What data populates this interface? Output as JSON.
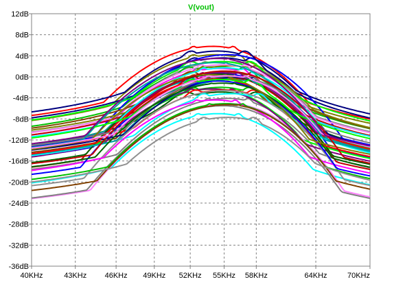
{
  "chart_data": {
    "type": "line",
    "title": "V(vout)",
    "title_color": "#00c000",
    "xlabel": "",
    "ylabel": "",
    "x_scale": "log",
    "xlim": [
      40000,
      70000
    ],
    "ylim": [
      -36,
      12
    ],
    "grid": true,
    "legend": "none",
    "x_ticks": [
      {
        "value": 40000,
        "label": "40KHz"
      },
      {
        "value": 43000,
        "label": "43KHz"
      },
      {
        "value": 46000,
        "label": "46KHz"
      },
      {
        "value": 49000,
        "label": "49KHz"
      },
      {
        "value": 52000,
        "label": "52KHz"
      },
      {
        "value": 55000,
        "label": "55KHz"
      },
      {
        "value": 58000,
        "label": "58KHz"
      },
      {
        "value": 64000,
        "label": "64KHz"
      },
      {
        "value": 70000,
        "label": "70KHz"
      }
    ],
    "y_ticks": [
      {
        "value": 12,
        "label": "12dB"
      },
      {
        "value": 8,
        "label": "8dB"
      },
      {
        "value": 4,
        "label": "4dB"
      },
      {
        "value": 0,
        "label": "0dB"
      },
      {
        "value": -4,
        "label": "-4dB"
      },
      {
        "value": -8,
        "label": "-8dB"
      },
      {
        "value": -12,
        "label": "-12dB"
      },
      {
        "value": -16,
        "label": "-16dB"
      },
      {
        "value": -20,
        "label": "-20dB"
      },
      {
        "value": -24,
        "label": "-24dB"
      },
      {
        "value": -28,
        "label": "-28dB"
      },
      {
        "value": -32,
        "label": "-32dB"
      },
      {
        "value": -36,
        "label": "-36dB"
      }
    ],
    "series_count": 48,
    "series_colors": [
      "#7f007f",
      "#ff00ff",
      "#00c000",
      "#ff0000",
      "#0000ff",
      "#00ffff",
      "#808080",
      "#006400",
      "#804000",
      "#7f7f00",
      "#00a0a0",
      "#c00000",
      "#00ff00",
      "#ff80ff",
      "#00007f",
      "#909090"
    ],
    "series": [
      {
        "f1": 52650,
        "f2": 56650,
        "peak": 1.6,
        "fall_low": 80,
        "fall_high": 111,
        "color": "#ff00ff"
      },
      {
        "f1": 52250,
        "f2": 57300,
        "peak": -2.0,
        "fall_low": 78,
        "fall_high": 111,
        "color": "#00c000"
      },
      {
        "f1": 52300,
        "f2": 55800,
        "peak": 5.8,
        "fall_low": 82,
        "fall_high": 109,
        "color": "#ff0000"
      },
      {
        "f1": 53650,
        "f2": 55900,
        "peak": 0.6,
        "fall_low": 79,
        "fall_high": 111,
        "color": "#0000ff"
      },
      {
        "f1": 52700,
        "f2": 56300,
        "peak": -7.0,
        "fall_low": 83,
        "fall_high": 109,
        "color": "#00ffff"
      },
      {
        "f1": 53600,
        "f2": 57200,
        "peak": -4.1,
        "fall_low": 80,
        "fall_high": 117,
        "color": "#808080"
      },
      {
        "f1": 51700,
        "f2": 58000,
        "peak": -2.9,
        "fall_low": 79,
        "fall_high": 115,
        "color": "#006400"
      },
      {
        "f1": 53900,
        "f2": 57100,
        "peak": -0.2,
        "fall_low": 83,
        "fall_high": 116,
        "color": "#804000"
      },
      {
        "f1": 52300,
        "f2": 56300,
        "peak": 4.2,
        "fall_low": 81,
        "fall_high": 112,
        "color": "#7f7f00"
      },
      {
        "f1": 52100,
        "f2": 55800,
        "peak": -0.2,
        "fall_low": 81,
        "fall_high": 109,
        "color": "#00a0a0"
      },
      {
        "f1": 53600,
        "f2": 55100,
        "peak": 0.5,
        "fall_low": 82,
        "fall_high": 108,
        "color": "#c00000"
      },
      {
        "f1": 52200,
        "f2": 56100,
        "peak": -2.3,
        "fall_low": 78,
        "fall_high": 115,
        "color": "#00ff00"
      },
      {
        "f1": 54700,
        "f2": 56200,
        "peak": -5.1,
        "fall_low": 79,
        "fall_high": 116,
        "color": "#ff80ff"
      },
      {
        "f1": 52400,
        "f2": 57500,
        "peak": 3.6,
        "fall_low": 83,
        "fall_high": 117,
        "color": "#00007f"
      },
      {
        "f1": 53300,
        "f2": 56900,
        "peak": 2.9,
        "fall_low": 82,
        "fall_high": 116,
        "color": "#909090"
      },
      {
        "f1": 52100,
        "f2": 55700,
        "peak": -2.3,
        "fall_low": 83,
        "fall_high": 110,
        "color": "#7f007f"
      },
      {
        "f1": 53200,
        "f2": 56800,
        "peak": 0.2,
        "fall_low": 80,
        "fall_high": 113,
        "color": "#ff00ff"
      },
      {
        "f1": 51900,
        "f2": 56900,
        "peak": 1.9,
        "fall_low": 79,
        "fall_high": 111,
        "color": "#00c000"
      },
      {
        "f1": 52500,
        "f2": 57700,
        "peak": -2.5,
        "fall_low": 81,
        "fall_high": 113,
        "color": "#ff0000"
      },
      {
        "f1": 54500,
        "f2": 56200,
        "peak": 4.2,
        "fall_low": 81,
        "fall_high": 112,
        "color": "#0000ff"
      },
      {
        "f1": 53200,
        "f2": 58200,
        "peak": -3.2,
        "fall_low": 78,
        "fall_high": 116,
        "color": "#00ffff"
      },
      {
        "f1": 54100,
        "f2": 55700,
        "peak": -5.5,
        "fall_low": 80,
        "fall_high": 108,
        "color": "#808080"
      },
      {
        "f1": 53600,
        "f2": 55400,
        "peak": 0.5,
        "fall_low": 80,
        "fall_high": 110,
        "color": "#006400"
      },
      {
        "f1": 52100,
        "f2": 57800,
        "peak": 1.0,
        "fall_low": 81,
        "fall_high": 109,
        "color": "#804000"
      },
      {
        "f1": 53300,
        "f2": 57900,
        "peak": 2.1,
        "fall_low": 78,
        "fall_high": 112,
        "color": "#7f7f00"
      },
      {
        "f1": 54200,
        "f2": 57400,
        "peak": -0.5,
        "fall_low": 80,
        "fall_high": 116,
        "color": "#00a0a0"
      },
      {
        "f1": 52200,
        "f2": 57500,
        "peak": 0.1,
        "fall_low": 83,
        "fall_high": 115,
        "color": "#c00000"
      },
      {
        "f1": 52100,
        "f2": 57400,
        "peak": 2.9,
        "fall_low": 82,
        "fall_high": 110,
        "color": "#00ff00"
      },
      {
        "f1": 53000,
        "f2": 56900,
        "peak": 2.3,
        "fall_low": 78,
        "fall_high": 108,
        "color": "#ff80ff"
      },
      {
        "f1": 54200,
        "f2": 57700,
        "peak": -0.1,
        "fall_low": 83,
        "fall_high": 113,
        "color": "#00007f"
      },
      {
        "f1": 54400,
        "f2": 55700,
        "peak": -2.6,
        "fall_low": 78,
        "fall_high": 110,
        "color": "#909090"
      },
      {
        "f1": 53100,
        "f2": 56300,
        "peak": 0.8,
        "fall_low": 83,
        "fall_high": 115,
        "color": "#7f007f"
      },
      {
        "f1": 52600,
        "f2": 56000,
        "peak": -4.4,
        "fall_low": 80,
        "fall_high": 115,
        "color": "#ff00ff"
      },
      {
        "f1": 53700,
        "f2": 56700,
        "peak": -5.1,
        "fall_low": 80,
        "fall_high": 112,
        "color": "#00c000"
      },
      {
        "f1": 52800,
        "f2": 55700,
        "peak": -0.4,
        "fall_low": 80,
        "fall_high": 109,
        "color": "#ff0000"
      },
      {
        "f1": 53800,
        "f2": 55300,
        "peak": -0.8,
        "fall_low": 79,
        "fall_high": 111,
        "color": "#0000ff"
      },
      {
        "f1": 53200,
        "f2": 57000,
        "peak": 1.7,
        "fall_low": 82,
        "fall_high": 111,
        "color": "#00ffff"
      },
      {
        "f1": 53700,
        "f2": 57600,
        "peak": 0.1,
        "fall_low": 83,
        "fall_high": 109,
        "color": "#808080"
      },
      {
        "f1": 53800,
        "f2": 56000,
        "peak": -1.2,
        "fall_low": 80,
        "fall_high": 110,
        "color": "#006400"
      },
      {
        "f1": 54300,
        "f2": 56400,
        "peak": -5.3,
        "fall_low": 78,
        "fall_high": 115,
        "color": "#804000"
      },
      {
        "f1": 52300,
        "f2": 55100,
        "peak": 0.4,
        "fall_low": 82,
        "fall_high": 114,
        "color": "#7f7f00"
      },
      {
        "f1": 53200,
        "f2": 55200,
        "peak": 2.7,
        "fall_low": 78,
        "fall_high": 114,
        "color": "#00a0a0"
      },
      {
        "f1": 54300,
        "f2": 55900,
        "peak": 1.1,
        "fall_low": 83,
        "fall_high": 108,
        "color": "#c00000"
      },
      {
        "f1": 52200,
        "f2": 57500,
        "peak": -0.5,
        "fall_low": 78,
        "fall_high": 116,
        "color": "#00ff00"
      },
      {
        "f1": 53600,
        "f2": 57000,
        "peak": 0.2,
        "fall_low": 80,
        "fall_high": 114,
        "color": "#ff80ff"
      },
      {
        "f1": 52100,
        "f2": 56900,
        "peak": 4.9,
        "fall_low": 83,
        "fall_high": 114,
        "color": "#00007f"
      },
      {
        "f1": 53200,
        "f2": 57700,
        "peak": -7.7,
        "fall_low": 79,
        "fall_high": 108,
        "color": "#909090"
      },
      {
        "f1": 53400,
        "f2": 55400,
        "peak": 3.5,
        "fall_low": 78,
        "fall_high": 117,
        "color": "#7f007f"
      }
    ]
  }
}
